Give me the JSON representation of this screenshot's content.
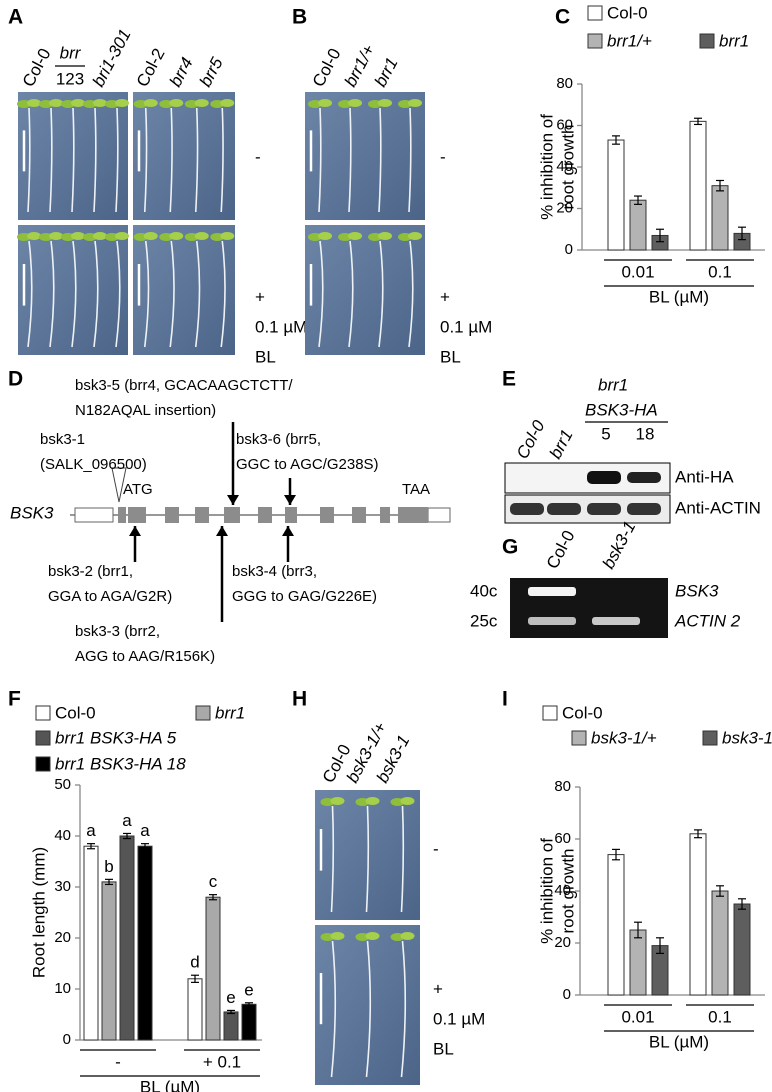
{
  "panel_labels": [
    "A",
    "B",
    "C",
    "D",
    "E",
    "F",
    "G",
    "H",
    "I"
  ],
  "panel_a": {
    "lanes": [
      "Col-0",
      "brr",
      "123",
      "bri1-301",
      "Col-2",
      "brr4",
      "brr5"
    ],
    "conditions": [
      "-",
      "+",
      "0.1 µM",
      "BL"
    ]
  },
  "panel_b": {
    "lanes": [
      "Col-0",
      "brr1/+",
      "brr1"
    ],
    "conditions": [
      "-",
      "+",
      "0.1 µM",
      "BL"
    ]
  },
  "panel_d": {
    "gene": "BSK3",
    "start": "ATG",
    "stop": "TAA",
    "alleles": [
      [
        "bsk3-5 (brr4, GCACAAGCTCTT/",
        "N182AQAL insertion)"
      ],
      [
        "bsk3-1",
        "(SALK_096500)"
      ],
      [
        "bsk3-6 (brr5,",
        "GGC to AGC/G238S)"
      ],
      [
        "bsk3-2 (brr1,",
        "GGA to AGA/G2R)"
      ],
      [
        "bsk3-4 (brr3,",
        "GGG to GAG/G226E)"
      ],
      [
        "bsk3-3 (brr2,",
        "AGG to AAG/R156K)"
      ]
    ]
  },
  "panel_e": {
    "header": "brr1",
    "construct": "BSK3-HA",
    "lines": [
      "5",
      "18"
    ],
    "lanes": [
      "Col-0",
      "brr1"
    ],
    "blots": [
      "Anti-HA",
      "Anti-ACTIN"
    ]
  },
  "panel_g": {
    "lanes": [
      "Col-0",
      "bsk3-1"
    ],
    "cycles": [
      "40c",
      "25c"
    ],
    "genes": [
      "BSK3",
      "ACTIN 2"
    ]
  },
  "panel_h": {
    "lanes": [
      "Col-0",
      "bsk3-1/+",
      "bsk3-1"
    ],
    "conditions": [
      "-",
      "+",
      "0.1 µM",
      "BL"
    ]
  },
  "chart_data": [
    {
      "type": "bar",
      "y_label": [
        "% inhibition of",
        "root growth"
      ],
      "x_label": "BL (µM)",
      "categories": [
        "0.01",
        "0.1"
      ],
      "ylim": [
        0,
        80
      ],
      "yticks": [
        0,
        20,
        40,
        60,
        80
      ],
      "series": [
        {
          "name": "Col-0",
          "color": "#ffffff",
          "values": [
            53,
            62
          ],
          "errors": [
            2,
            1.5
          ]
        },
        {
          "name": "brr1/+",
          "color": "#b3b3b3",
          "values": [
            24,
            31
          ],
          "errors": [
            2,
            2.5
          ]
        },
        {
          "name": "brr1",
          "color": "#5e5e5e",
          "values": [
            7,
            8
          ],
          "errors": [
            3,
            3
          ]
        }
      ]
    },
    {
      "type": "bar",
      "y_label": [
        "Root length (mm)"
      ],
      "x_label": "BL (µM)",
      "categories": [
        "-",
        "+ 0.1"
      ],
      "ylim": [
        0,
        50
      ],
      "yticks": [
        0,
        10,
        20,
        30,
        40,
        50
      ],
      "series": [
        {
          "name": "Col-0",
          "color": "#ffffff",
          "values": [
            38,
            12
          ],
          "errors": [
            0.5,
            0.7
          ],
          "annotations": [
            "a",
            "d"
          ]
        },
        {
          "name": "brr1",
          "color": "#a9a9a9",
          "values": [
            31,
            28
          ],
          "errors": [
            0.5,
            0.5
          ],
          "annotations": [
            "b",
            "c"
          ]
        },
        {
          "name": "brr1 BSK3-HA 5",
          "color": "#555555",
          "values": [
            40,
            5.5
          ],
          "errors": [
            0.5,
            0.3
          ],
          "annotations": [
            "a",
            "e"
          ]
        },
        {
          "name": "brr1 BSK3-HA 18",
          "color": "#000000",
          "values": [
            38,
            7
          ],
          "errors": [
            0.5,
            0.3
          ],
          "annotations": [
            "a",
            "e"
          ]
        }
      ]
    },
    {
      "type": "bar",
      "y_label": [
        "% inhibition of",
        "root growth"
      ],
      "x_label": "BL (µM)",
      "categories": [
        "0.01",
        "0.1"
      ],
      "ylim": [
        0,
        80
      ],
      "yticks": [
        0,
        20,
        40,
        60,
        80
      ],
      "series": [
        {
          "name": "Col-0",
          "color": "#ffffff",
          "values": [
            54,
            62
          ],
          "errors": [
            2,
            1.5
          ]
        },
        {
          "name": "bsk3-1/+",
          "color": "#b3b3b3",
          "values": [
            25,
            40
          ],
          "errors": [
            3,
            2
          ]
        },
        {
          "name": "bsk3-1",
          "color": "#5e5e5e",
          "values": [
            19,
            35
          ],
          "errors": [
            3,
            2
          ]
        }
      ]
    }
  ]
}
